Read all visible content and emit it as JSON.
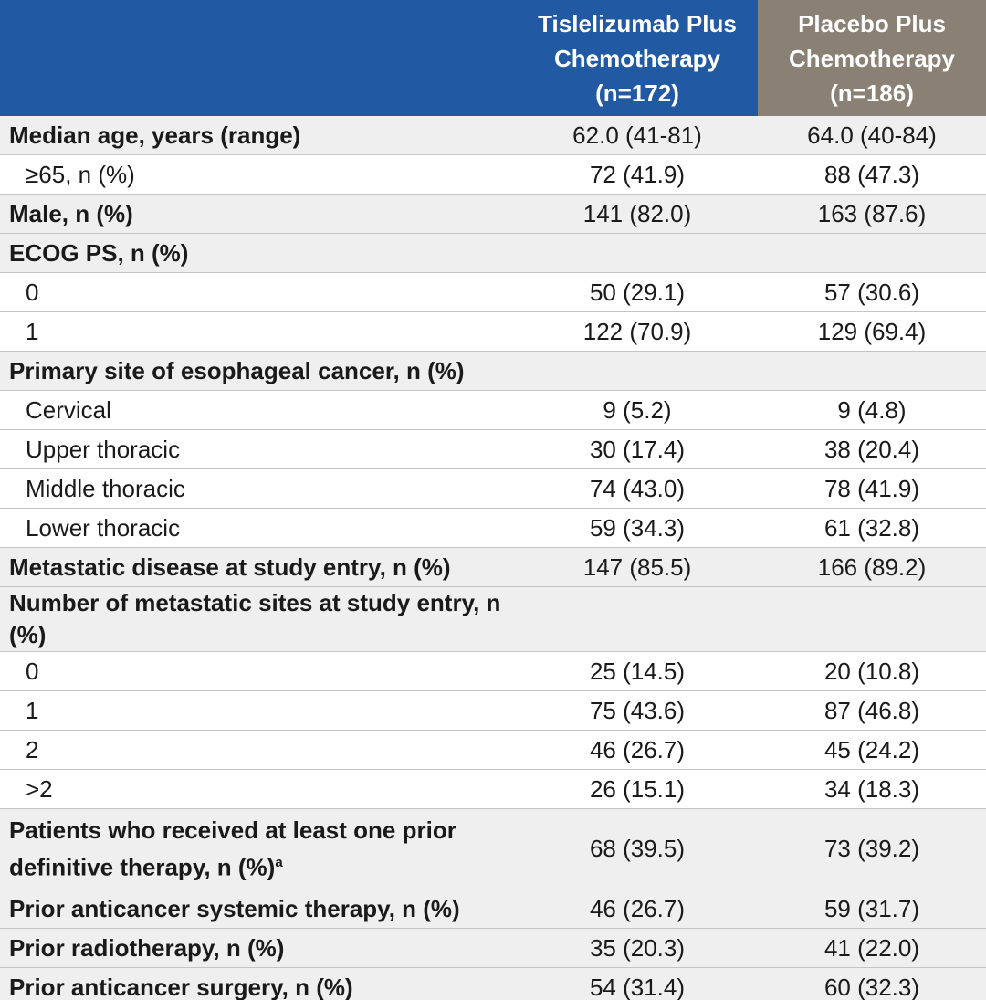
{
  "header": {
    "columns": [
      [
        "Tislelizumab Plus",
        "Chemotherapy",
        "(n=172)"
      ],
      [
        "Placebo Plus",
        "Chemotherapy",
        "(n=186)"
      ]
    ]
  },
  "table": {
    "rows": [
      {
        "label": "Median age, years (range)",
        "bold": true,
        "values": [
          "62.0 (41-81)",
          "64.0 (40-84)"
        ]
      },
      {
        "label": "≥65, n (%)",
        "indent": true,
        "values": [
          "72 (41.9)",
          "88 (47.3)"
        ]
      },
      {
        "label": "Male, n (%)",
        "bold": true,
        "values": [
          "141 (82.0)",
          "163 (87.6)"
        ]
      },
      {
        "label": "ECOG PS, n (%)",
        "bold": true
      },
      {
        "label": "0",
        "indent": true,
        "values": [
          "50 (29.1)",
          "57 (30.6)"
        ]
      },
      {
        "label": "1",
        "indent": true,
        "values": [
          "122 (70.9)",
          "129 (69.4)"
        ]
      },
      {
        "label": "Primary site of esophageal cancer, n (%)",
        "bold": true
      },
      {
        "label": "Cervical",
        "indent": true,
        "values": [
          "9 (5.2)",
          "9 (4.8)"
        ]
      },
      {
        "label": "Upper thoracic",
        "indent": true,
        "values": [
          "30 (17.4)",
          "38 (20.4)"
        ]
      },
      {
        "label": "Middle thoracic",
        "indent": true,
        "values": [
          "74 (43.0)",
          "78 (41.9)"
        ]
      },
      {
        "label": "Lower thoracic",
        "indent": true,
        "values": [
          "59 (34.3)",
          "61 (32.8)"
        ]
      },
      {
        "label": "Metastatic disease at study entry, n (%)",
        "bold": true,
        "values": [
          "147 (85.5)",
          "166 (89.2)"
        ]
      },
      {
        "label": "Number of metastatic sites at study entry, n (%)",
        "bold": true
      },
      {
        "label": "0",
        "indent": true,
        "values": [
          "25 (14.5)",
          "20 (10.8)"
        ]
      },
      {
        "label": "1",
        "indent": true,
        "values": [
          "75 (43.6)",
          "87 (46.8)"
        ]
      },
      {
        "label": "2",
        "indent": true,
        "values": [
          "46 (26.7)",
          "45 (24.2)"
        ]
      },
      {
        "label": ">2",
        "indent": true,
        "values": [
          "26 (15.1)",
          "34 (18.3)"
        ]
      },
      {
        "label": "Patients who received at least one prior definitive therapy, n (%)",
        "footnote": "a",
        "bold": true,
        "values": [
          "68 (39.5)",
          "73 (39.2)"
        ]
      },
      {
        "label": "Prior anticancer systemic therapy, n (%)",
        "bold": true,
        "values": [
          "46 (26.7)",
          "59 (31.7)"
        ]
      },
      {
        "label": "Prior radiotherapy, n (%)",
        "bold": true,
        "values": [
          "35 (20.3)",
          "41 (22.0)"
        ]
      },
      {
        "label": "Prior anticancer surgery, n (%)",
        "bold": true,
        "values": [
          "54 (31.4)",
          "60 (32.3)"
        ]
      }
    ]
  }
}
